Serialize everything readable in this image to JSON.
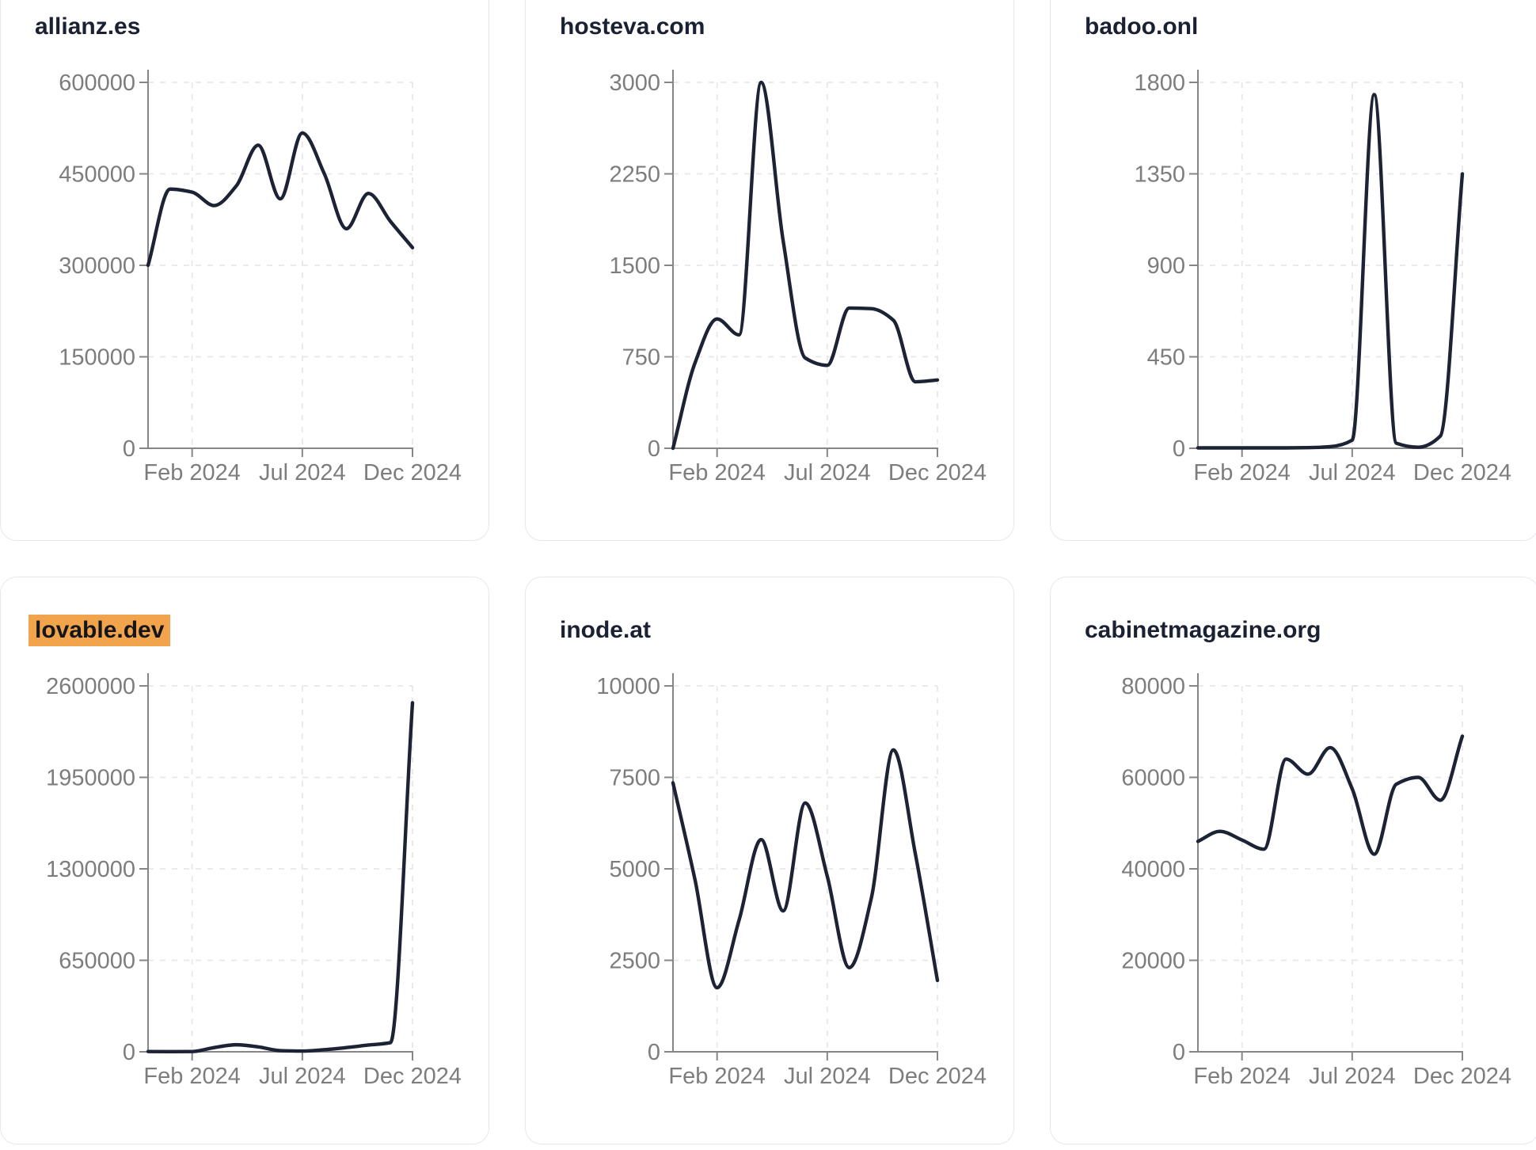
{
  "style": {
    "line_color": "#1c2335",
    "axis_color": "#868686",
    "label_color": "#7d7d7d",
    "grid_color": "#e7e7ea",
    "card_border_color": "#e5e8f1",
    "highlight_color": "#f2a44d",
    "title_color": "#1a2133"
  },
  "chart_data": [
    {
      "type": "line",
      "title": "allianz.es",
      "title_highlighted": false,
      "x": [
        "Dec 2023",
        "Jan 2024",
        "Feb 2024",
        "Mar 2024",
        "Apr 2024",
        "May 2024",
        "Jun 2024",
        "Jul 2024",
        "Aug 2024",
        "Sep 2024",
        "Oct 2024",
        "Nov 2024",
        "Dec 2024"
      ],
      "values": [
        300000,
        425000,
        420000,
        398000,
        430000,
        497000,
        409000,
        517000,
        450000,
        360000,
        418000,
        372000,
        329000
      ],
      "ylim": [
        0,
        600000
      ],
      "y_ticks": [
        0,
        150000,
        300000,
        450000,
        600000
      ],
      "x_ticks": [
        {
          "index": 2,
          "label": "Feb 2024"
        },
        {
          "index": 7,
          "label": "Jul 2024"
        },
        {
          "index": 12,
          "label": "Dec 2024"
        }
      ],
      "grid": "dashed",
      "legend": "none"
    },
    {
      "type": "line",
      "title": "hosteva.com",
      "title_highlighted": false,
      "x": [
        "Dec 2023",
        "Jan 2024",
        "Feb 2024",
        "Mar 2024",
        "Apr 2024",
        "May 2024",
        "Jun 2024",
        "Jul 2024",
        "Aug 2024",
        "Sep 2024",
        "Oct 2024",
        "Nov 2024",
        "Dec 2024"
      ],
      "values": [
        0,
        700,
        1060,
        930,
        3000,
        1700,
        740,
        680,
        1150,
        1145,
        1050,
        545,
        560
      ],
      "ylim": [
        0,
        3000
      ],
      "y_ticks": [
        0,
        750,
        1500,
        2250,
        3000
      ],
      "x_ticks": [
        {
          "index": 2,
          "label": "Feb 2024"
        },
        {
          "index": 7,
          "label": "Jul 2024"
        },
        {
          "index": 12,
          "label": "Dec 2024"
        }
      ],
      "grid": "dashed",
      "legend": "none"
    },
    {
      "type": "line",
      "title": "badoo.onl",
      "title_highlighted": false,
      "x": [
        "Dec 2023",
        "Jan 2024",
        "Feb 2024",
        "Mar 2024",
        "Apr 2024",
        "May 2024",
        "Jun 2024",
        "Jul 2024",
        "Aug 2024",
        "Sep 2024",
        "Oct 2024",
        "Nov 2024",
        "Dec 2024"
      ],
      "values": [
        2,
        2,
        2,
        2,
        2,
        3,
        8,
        40,
        1740,
        25,
        5,
        60,
        1350
      ],
      "ylim": [
        0,
        1800
      ],
      "y_ticks": [
        0,
        450,
        900,
        1350,
        1800
      ],
      "x_ticks": [
        {
          "index": 2,
          "label": "Feb 2024"
        },
        {
          "index": 7,
          "label": "Jul 2024"
        },
        {
          "index": 12,
          "label": "Dec 2024"
        }
      ],
      "grid": "dashed",
      "legend": "none"
    },
    {
      "type": "line",
      "title": "lovable.dev",
      "title_highlighted": true,
      "x": [
        "Dec 2023",
        "Jan 2024",
        "Feb 2024",
        "Mar 2024",
        "Apr 2024",
        "May 2024",
        "Jun 2024",
        "Jul 2024",
        "Aug 2024",
        "Sep 2024",
        "Oct 2024",
        "Nov 2024",
        "Dec 2024"
      ],
      "values": [
        2000,
        1000,
        2000,
        30000,
        50000,
        35000,
        8000,
        5000,
        15000,
        30000,
        48000,
        65000,
        2480000
      ],
      "ylim": [
        0,
        2600000
      ],
      "y_ticks": [
        0,
        650000,
        1300000,
        1950000,
        2600000
      ],
      "x_ticks": [
        {
          "index": 2,
          "label": "Feb 2024"
        },
        {
          "index": 7,
          "label": "Jul 2024"
        },
        {
          "index": 12,
          "label": "Dec 2024"
        }
      ],
      "grid": "dashed",
      "legend": "none"
    },
    {
      "type": "line",
      "title": "inode.at",
      "title_highlighted": false,
      "x": [
        "Dec 2023",
        "Jan 2024",
        "Feb 2024",
        "Mar 2024",
        "Apr 2024",
        "May 2024",
        "Jun 2024",
        "Jul 2024",
        "Aug 2024",
        "Sep 2024",
        "Oct 2024",
        "Nov 2024",
        "Dec 2024"
      ],
      "values": [
        7350,
        4700,
        1750,
        3600,
        5800,
        3850,
        6800,
        4800,
        2300,
        4200,
        8250,
        5400,
        1950
      ],
      "ylim": [
        0,
        10000
      ],
      "y_ticks": [
        0,
        2500,
        5000,
        7500,
        10000
      ],
      "x_ticks": [
        {
          "index": 2,
          "label": "Feb 2024"
        },
        {
          "index": 7,
          "label": "Jul 2024"
        },
        {
          "index": 12,
          "label": "Dec 2024"
        }
      ],
      "grid": "dashed",
      "legend": "none"
    },
    {
      "type": "line",
      "title": "cabinetmagazine.org",
      "title_highlighted": false,
      "x": [
        "Dec 2023",
        "Jan 2024",
        "Feb 2024",
        "Mar 2024",
        "Apr 2024",
        "May 2024",
        "Jun 2024",
        "Jul 2024",
        "Aug 2024",
        "Sep 2024",
        "Oct 2024",
        "Nov 2024",
        "Dec 2024"
      ],
      "values": [
        46000,
        48200,
        46300,
        44300,
        64000,
        60700,
        66500,
        57500,
        43200,
        58500,
        60000,
        55000,
        69000
      ],
      "ylim": [
        0,
        80000
      ],
      "y_ticks": [
        0,
        20000,
        40000,
        60000,
        80000
      ],
      "x_ticks": [
        {
          "index": 2,
          "label": "Feb 2024"
        },
        {
          "index": 7,
          "label": "Jul 2024"
        },
        {
          "index": 12,
          "label": "Dec 2024"
        }
      ],
      "grid": "dashed",
      "legend": "none"
    }
  ]
}
